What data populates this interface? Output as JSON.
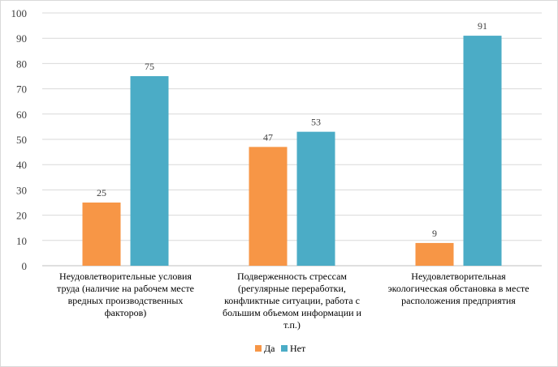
{
  "chart_data": {
    "type": "bar",
    "categories": [
      [
        "Неудовлетворительные  условия",
        "труда (наличие  на рабочем месте",
        "вредных  производственных",
        "факторов)"
      ],
      [
        "Подверженность  стрессам",
        "(регулярные переработки,",
        "конфликтные  ситуации,  работа с",
        "большим объемом информации и",
        "т.п.)"
      ],
      [
        "Неудовлетворительная",
        "экологическая обстановка в месте",
        "расположения предприятия"
      ]
    ],
    "series": [
      {
        "name": "Да",
        "values": [
          25,
          47,
          9
        ],
        "color": "#F79646"
      },
      {
        "name": "Нет",
        "values": [
          75,
          53,
          91
        ],
        "color": "#4BACC6"
      }
    ],
    "ylim": [
      0,
      100
    ],
    "yticks": [
      "0",
      "10",
      "20",
      "30",
      "40",
      "50",
      "60",
      "70",
      "80",
      "90",
      "100"
    ],
    "grid": true,
    "legend": "bottom",
    "data_labels": true
  }
}
